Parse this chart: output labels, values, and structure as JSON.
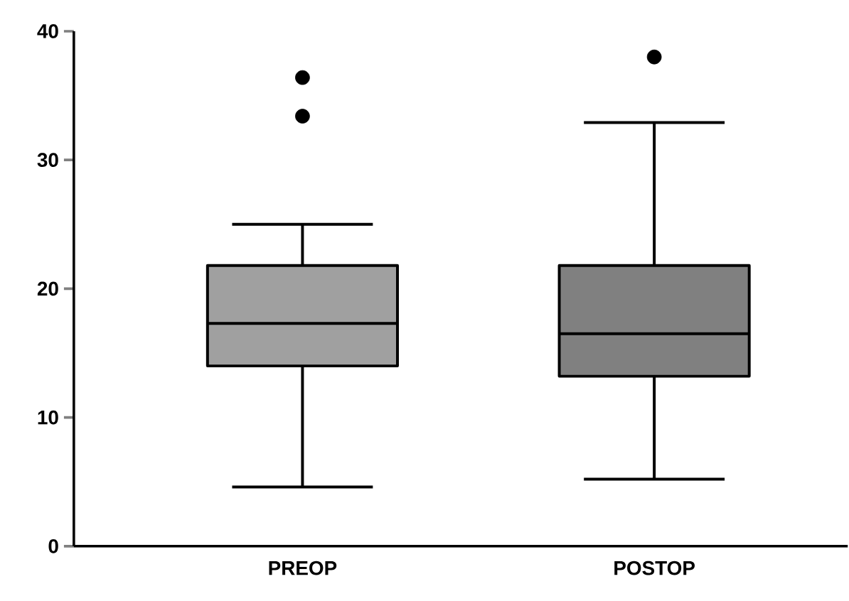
{
  "chart_data": {
    "type": "box",
    "categories": [
      "PREOP",
      "POSTOP"
    ],
    "boxes": [
      {
        "low": 4.6,
        "q1": 14.0,
        "median": 17.3,
        "q3": 21.8,
        "high": 25.0,
        "outliers": [
          36.4,
          33.4
        ]
      },
      {
        "low": 5.2,
        "q1": 13.2,
        "median": 16.5,
        "q3": 21.8,
        "high": 32.9,
        "outliers": [
          38.0
        ]
      }
    ],
    "colors": [
      "#a0a0a0",
      "#808080"
    ],
    "ylim": [
      0,
      40
    ],
    "yticks": [
      0,
      10,
      20,
      30,
      40
    ],
    "marker": "circle"
  }
}
